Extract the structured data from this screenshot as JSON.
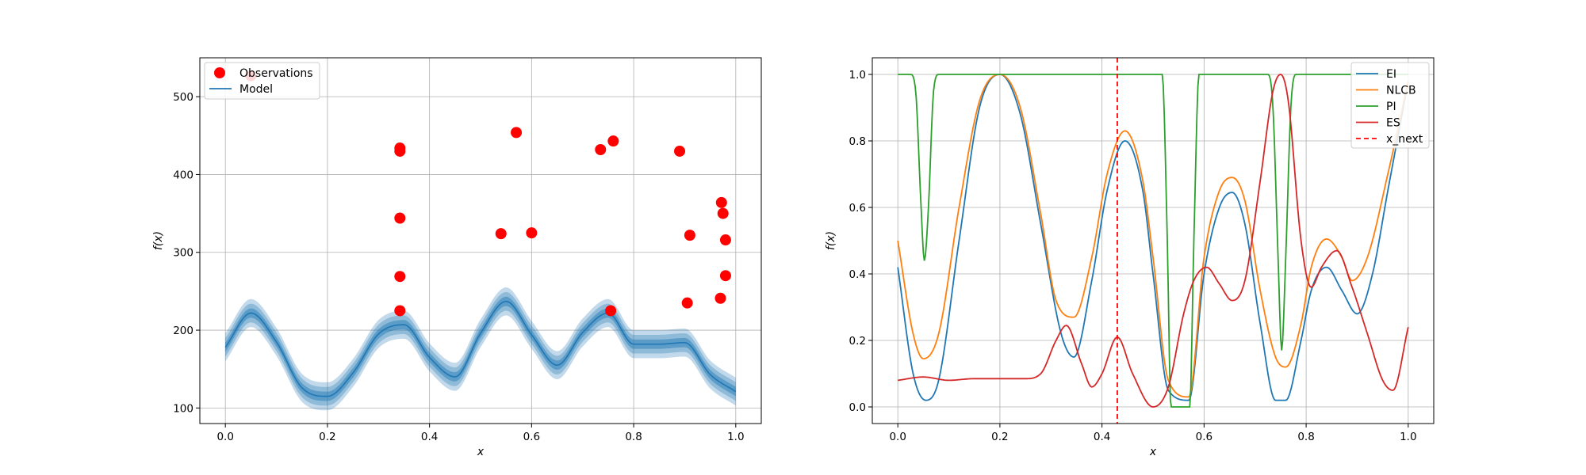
{
  "chart_data": [
    {
      "type": "scatter",
      "xlabel": "x",
      "ylabel": "f(x)",
      "xlim": [
        -0.05,
        1.05
      ],
      "ylim": [
        80,
        550
      ],
      "xticks": [
        0.0,
        0.2,
        0.4,
        0.6,
        0.8,
        1.0
      ],
      "xticklabels": [
        "0.0",
        "0.2",
        "0.4",
        "0.6",
        "0.8",
        "1.0"
      ],
      "yticks": [
        100,
        200,
        300,
        400,
        500
      ],
      "yticklabels": [
        "100",
        "200",
        "300",
        "400",
        "500"
      ],
      "grid": true,
      "legend": {
        "placement": "upper-left",
        "entries": [
          "Observations",
          "Model"
        ]
      },
      "observations": {
        "name": "Observations",
        "color": "#ff0000",
        "x": [
          0.05,
          0.342,
          0.342,
          0.342,
          0.342,
          0.342,
          0.54,
          0.57,
          0.6,
          0.735,
          0.755,
          0.76,
          0.89,
          0.905,
          0.91,
          0.97,
          0.975,
          0.972,
          0.98,
          0.98
        ],
        "y": [
          527,
          434,
          430,
          344,
          269,
          225,
          324,
          454,
          325,
          432,
          225,
          443,
          430,
          235,
          322,
          241,
          350,
          364,
          316,
          270
        ]
      },
      "model": {
        "name": "Model",
        "color": "#1f77b4",
        "x": [
          0.0,
          0.05,
          0.1,
          0.15,
          0.2,
          0.25,
          0.3,
          0.35,
          0.4,
          0.45,
          0.5,
          0.55,
          0.6,
          0.65,
          0.7,
          0.75,
          0.8,
          0.85,
          0.9,
          0.95,
          1.0
        ],
        "mean": [
          178,
          222,
          185,
          126,
          115,
          145,
          195,
          207,
          165,
          140,
          196,
          237,
          194,
          155,
          197,
          222,
          182,
          182,
          184,
          143,
          121
        ],
        "band_sd": [
          6,
          12,
          18
        ]
      }
    },
    {
      "type": "line",
      "xlabel": "x",
      "ylabel": "f(x)",
      "xlim": [
        -0.05,
        1.05
      ],
      "ylim": [
        -0.05,
        1.05
      ],
      "xticks": [
        0.0,
        0.2,
        0.4,
        0.6,
        0.8,
        1.0
      ],
      "xticklabels": [
        "0.0",
        "0.2",
        "0.4",
        "0.6",
        "0.8",
        "1.0"
      ],
      "yticks": [
        0.0,
        0.2,
        0.4,
        0.6,
        0.8,
        1.0
      ],
      "yticklabels": [
        "0.0",
        "0.2",
        "0.4",
        "0.6",
        "0.8",
        "1.0"
      ],
      "grid": true,
      "legend": {
        "placement": "upper-right",
        "entries": [
          "EI",
          "NLCB",
          "PI",
          "ES",
          "x_next"
        ]
      },
      "series": [
        {
          "name": "EI",
          "color": "#1f77b4",
          "x": [
            0.0,
            0.03,
            0.055,
            0.08,
            0.12,
            0.16,
            0.2,
            0.24,
            0.28,
            0.32,
            0.345,
            0.38,
            0.41,
            0.445,
            0.48,
            0.5,
            0.53,
            0.57,
            0.6,
            0.63,
            0.655,
            0.68,
            0.71,
            0.74,
            0.76,
            0.79,
            0.81,
            0.84,
            0.87,
            0.9,
            0.93,
            0.96,
            1.0
          ],
          "y": [
            0.42,
            0.1,
            0.02,
            0.08,
            0.5,
            0.9,
            1.0,
            0.88,
            0.55,
            0.22,
            0.15,
            0.38,
            0.65,
            0.8,
            0.65,
            0.4,
            0.05,
            0.02,
            0.4,
            0.6,
            0.645,
            0.55,
            0.25,
            0.02,
            0.02,
            0.2,
            0.35,
            0.42,
            0.35,
            0.28,
            0.4,
            0.65,
            0.98
          ]
        },
        {
          "name": "NLCB",
          "color": "#ff7f0e",
          "x": [
            0.0,
            0.03,
            0.05,
            0.08,
            0.12,
            0.16,
            0.2,
            0.24,
            0.28,
            0.31,
            0.345,
            0.38,
            0.41,
            0.445,
            0.48,
            0.5,
            0.53,
            0.57,
            0.6,
            0.63,
            0.655,
            0.68,
            0.71,
            0.74,
            0.76,
            0.79,
            0.81,
            0.84,
            0.87,
            0.89,
            0.92,
            0.96,
            1.0
          ],
          "y": [
            0.5,
            0.22,
            0.145,
            0.22,
            0.6,
            0.92,
            1.0,
            0.9,
            0.58,
            0.32,
            0.27,
            0.45,
            0.7,
            0.83,
            0.68,
            0.45,
            0.08,
            0.03,
            0.45,
            0.65,
            0.69,
            0.62,
            0.35,
            0.15,
            0.12,
            0.25,
            0.42,
            0.505,
            0.45,
            0.38,
            0.45,
            0.7,
            0.98
          ]
        },
        {
          "name": "PI",
          "color": "#2ca02c",
          "x": [
            0.0,
            0.025,
            0.035,
            0.045,
            0.052,
            0.06,
            0.07,
            0.08,
            0.2,
            0.4,
            0.5,
            0.518,
            0.528,
            0.535,
            0.572,
            0.58,
            0.59,
            0.6,
            0.7,
            0.725,
            0.735,
            0.745,
            0.752,
            0.76,
            0.77,
            0.78,
            0.8,
            1.0
          ],
          "y": [
            1.0,
            1.0,
            0.95,
            0.62,
            0.44,
            0.6,
            0.95,
            1.0,
            1.0,
            1.0,
            1.0,
            1.0,
            0.5,
            0.0,
            0.0,
            0.5,
            1.0,
            1.0,
            1.0,
            1.0,
            0.9,
            0.45,
            0.17,
            0.45,
            0.9,
            1.0,
            1.0,
            1.0
          ]
        },
        {
          "name": "ES",
          "color": "#d62728",
          "x": [
            0.0,
            0.05,
            0.1,
            0.15,
            0.2,
            0.25,
            0.28,
            0.31,
            0.33,
            0.36,
            0.38,
            0.4,
            0.43,
            0.46,
            0.5,
            0.53,
            0.56,
            0.58,
            0.605,
            0.63,
            0.655,
            0.68,
            0.71,
            0.735,
            0.75,
            0.765,
            0.79,
            0.81,
            0.83,
            0.86,
            0.89,
            0.92,
            0.95,
            0.97,
            1.0
          ],
          "y": [
            0.08,
            0.09,
            0.08,
            0.085,
            0.085,
            0.085,
            0.1,
            0.2,
            0.245,
            0.13,
            0.06,
            0.1,
            0.21,
            0.1,
            0.0,
            0.06,
            0.28,
            0.38,
            0.42,
            0.37,
            0.32,
            0.38,
            0.68,
            0.95,
            1.0,
            0.92,
            0.5,
            0.36,
            0.42,
            0.47,
            0.36,
            0.22,
            0.08,
            0.05,
            0.24
          ]
        }
      ],
      "vline": {
        "name": "x_next",
        "x": 0.43,
        "color": "#ff0000",
        "style": "dashed"
      }
    }
  ]
}
